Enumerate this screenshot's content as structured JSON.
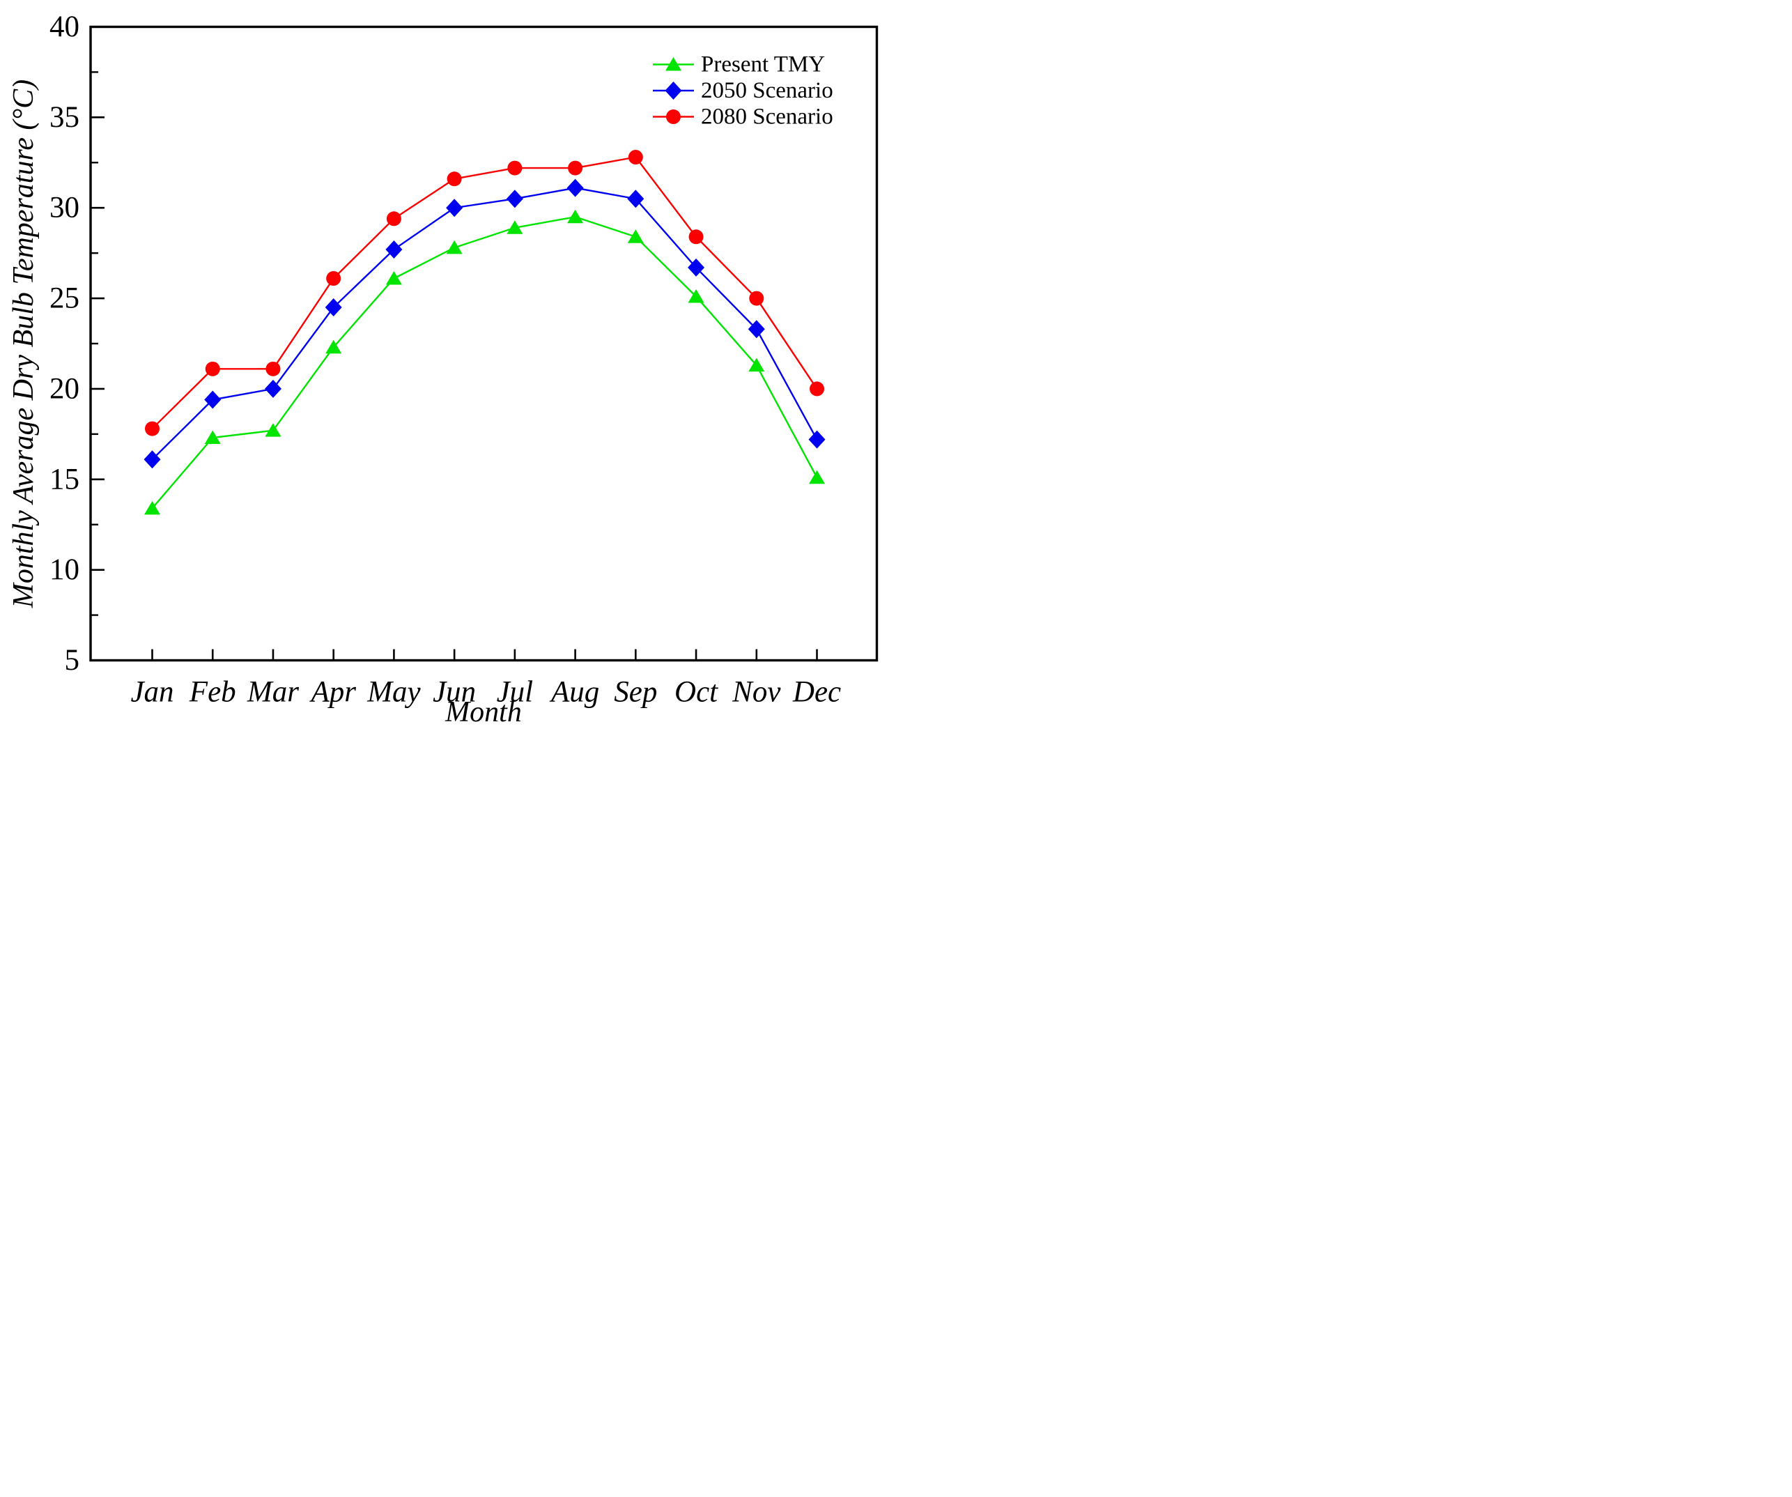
{
  "chart_data": {
    "type": "line",
    "title": "",
    "xlabel": "Month",
    "ylabel": "Monthly Average Dry Bulb Temperature (°C)",
    "ylim": [
      5,
      40
    ],
    "ytick_major_step": 5,
    "ytick_minor_step": 2.5,
    "ytick_labels": [
      "5",
      "10",
      "15",
      "20",
      "25",
      "30",
      "35",
      "40"
    ],
    "grid": false,
    "frame": "box",
    "legend_position": "top-right",
    "axis_color": "#000000",
    "categories": [
      "Jan",
      "Feb",
      "Mar",
      "Apr",
      "May",
      "Jun",
      "Jul",
      "Aug",
      "Sep",
      "Oct",
      "Nov",
      "Dec"
    ],
    "series": [
      {
        "name": "Present TMY",
        "marker": "triangle",
        "color": "#00e400",
        "values": [
          13.4,
          17.3,
          17.7,
          22.3,
          26.1,
          27.8,
          28.9,
          29.5,
          28.4,
          25.1,
          21.3,
          15.1
        ]
      },
      {
        "name": "2050 Scenario",
        "marker": "diamond",
        "color": "#0000f0",
        "values": [
          16.1,
          19.4,
          20.0,
          24.5,
          27.7,
          30.0,
          30.5,
          31.1,
          30.5,
          26.7,
          23.3,
          17.2
        ]
      },
      {
        "name": "2080 Scenario",
        "marker": "circle",
        "color": "#fb0000",
        "values": [
          17.8,
          21.1,
          21.1,
          26.1,
          29.4,
          31.6,
          32.2,
          32.2,
          32.8,
          28.4,
          25.0,
          20.0
        ]
      }
    ]
  }
}
